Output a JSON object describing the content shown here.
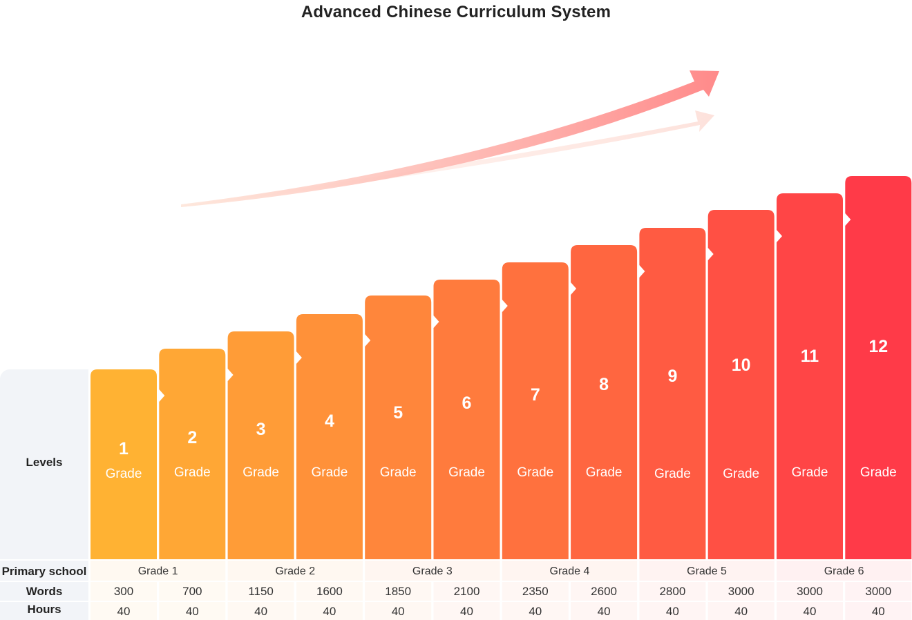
{
  "title": "Advanced Chinese Curriculum System",
  "levels_label": "Levels",
  "grade_word": "Grade",
  "levels": [
    "1",
    "2",
    "3",
    "4",
    "5",
    "6",
    "7",
    "8",
    "9",
    "10",
    "11",
    "12"
  ],
  "rows": {
    "primary_label": "Primary school",
    "words_label": "Words",
    "hours_label": "Hours"
  },
  "primary_grades": [
    "Grade 1",
    "Grade 2",
    "Grade 3",
    "Grade 4",
    "Grade 5",
    "Grade 6"
  ],
  "words": [
    "300",
    "700",
    "1150",
    "1600",
    "1850",
    "2100",
    "2350",
    "2600",
    "2800",
    "3000",
    "3000",
    "3000"
  ],
  "hours": [
    "40",
    "40",
    "40",
    "40",
    "40",
    "40",
    "40",
    "40",
    "40",
    "40",
    "40",
    "40"
  ],
  "colors": {
    "start": "#ffb233",
    "end": "#ff3a48",
    "panel": "#f2f4f8",
    "text": "#222222"
  }
}
